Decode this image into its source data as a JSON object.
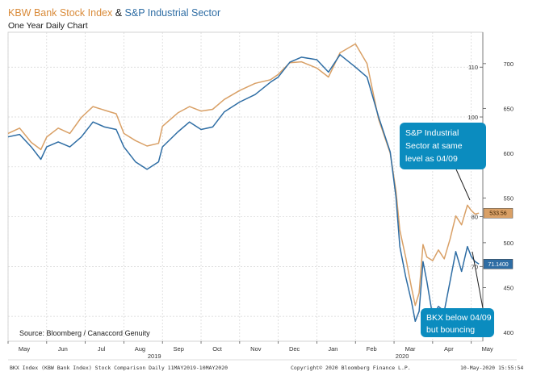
{
  "chart_data": {
    "type": "line",
    "title_part1": "KBW Bank Stock Index",
    "title_amp": " & ",
    "title_part2": "S&P Industrial Sector",
    "subtitle": "One Year Daily Chart",
    "source": "Source: Bloomberg / Canaccord Genuity",
    "footer_left": "BKX Index (KBW Bank Index) Stock Comparison  Daily 11MAY2019-10MAY2020",
    "footer_mid": "Copyright© 2020 Bloomberg Finance L.P.",
    "footer_right": "10-May-2020 15:55:54",
    "x_months": [
      "May",
      "Jun",
      "Jul",
      "Aug",
      "Sep",
      "Oct",
      "Nov",
      "Dec",
      "Jan",
      "Feb",
      "Mar",
      "Apr",
      "May"
    ],
    "x_years": [
      "2019",
      "2020"
    ],
    "y_left": {
      "ticks": [
        60,
        70,
        80,
        90,
        100,
        110
      ],
      "range": [
        55,
        117
      ]
    },
    "y_right": {
      "ticks": [
        400,
        450,
        500,
        550,
        600,
        650,
        700
      ],
      "range": [
        390,
        735
      ]
    },
    "series": [
      {
        "name": "KBW Bank Stock Index",
        "axis": "left",
        "color": "#2e6da4",
        "last_value_label": "71.1400",
        "x": [
          0,
          0.3,
          0.6,
          0.85,
          1.0,
          1.3,
          1.6,
          1.9,
          2.2,
          2.5,
          2.8,
          3.0,
          3.3,
          3.6,
          3.9,
          4.0,
          4.4,
          4.7,
          5.0,
          5.3,
          5.6,
          6.0,
          6.4,
          6.8,
          7.0,
          7.3,
          7.6,
          8.0,
          8.3,
          8.6,
          9.0,
          9.3,
          9.6,
          9.9,
          10.05,
          10.15,
          10.3,
          10.45,
          10.55,
          10.65,
          10.75,
          10.85,
          11.0,
          11.15,
          11.3,
          11.45,
          11.6,
          11.75,
          11.9,
          12.0,
          12.1,
          12.2
        ],
        "y": [
          96,
          96.5,
          94,
          91.5,
          94,
          95,
          94,
          96,
          99,
          98,
          97.5,
          94,
          91,
          89.5,
          91,
          94,
          97,
          99,
          97.5,
          98,
          101,
          103,
          104.5,
          107,
          108,
          111,
          112,
          111.5,
          109,
          112.5,
          110,
          108,
          100,
          93,
          84,
          74,
          68,
          63,
          59,
          61,
          71,
          67,
          60,
          62,
          61,
          67,
          73,
          69,
          74,
          72,
          71,
          70.5
        ]
      },
      {
        "name": "S&P Industrial Sector",
        "axis": "right",
        "color": "#d9a066",
        "last_value_label": "533.56",
        "x": [
          0,
          0.3,
          0.6,
          0.85,
          1.0,
          1.3,
          1.6,
          1.9,
          2.2,
          2.5,
          2.8,
          3.0,
          3.3,
          3.6,
          3.9,
          4.0,
          4.4,
          4.7,
          5.0,
          5.3,
          5.6,
          6.0,
          6.4,
          6.8,
          7.0,
          7.3,
          7.6,
          8.0,
          8.3,
          8.6,
          9.0,
          9.3,
          9.6,
          9.9,
          10.05,
          10.15,
          10.3,
          10.45,
          10.55,
          10.65,
          10.75,
          10.85,
          11.0,
          11.15,
          11.3,
          11.45,
          11.6,
          11.75,
          11.9,
          12.0,
          12.1,
          12.2
        ],
        "y": [
          622,
          628,
          612,
          604,
          618,
          628,
          622,
          640,
          652,
          648,
          644,
          622,
          614,
          608,
          611,
          630,
          645,
          652,
          647,
          649,
          660,
          670,
          678,
          682,
          688,
          701,
          702,
          695,
          685,
          712,
          722,
          700,
          638,
          600,
          558,
          514,
          484,
          450,
          430,
          444,
          498,
          484,
          480,
          492,
          482,
          504,
          530,
          520,
          542,
          536,
          532,
          533
        ]
      }
    ],
    "annotations": [
      {
        "lines": [
          "S&P Industrial",
          "Sector at same",
          "level as 04/09"
        ],
        "color": "#0b8cbf"
      },
      {
        "lines": [
          "BKX below 04/09",
          "but bouncing"
        ],
        "color": "#0b8cbf"
      }
    ],
    "grid": true,
    "legend": "none"
  }
}
